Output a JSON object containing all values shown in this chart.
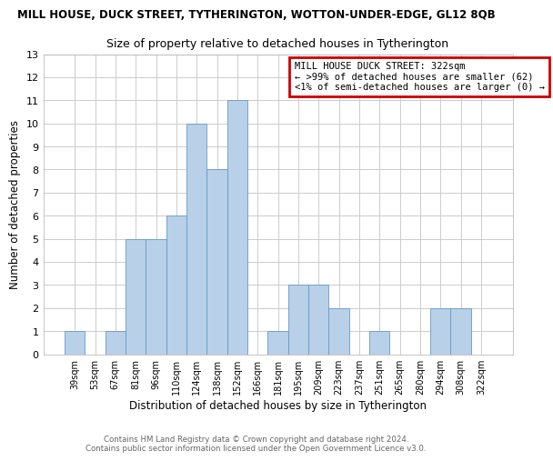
{
  "title": "MILL HOUSE, DUCK STREET, TYTHERINGTON, WOTTON-UNDER-EDGE, GL12 8QB",
  "subtitle": "Size of property relative to detached houses in Tytherington",
  "xlabel": "Distribution of detached houses by size in Tytherington",
  "ylabel": "Number of detached properties",
  "bar_color": "#b8d0e8",
  "bar_edge_color": "#6699cc",
  "categories": [
    "39sqm",
    "53sqm",
    "67sqm",
    "81sqm",
    "96sqm",
    "110sqm",
    "124sqm",
    "138sqm",
    "152sqm",
    "166sqm",
    "181sqm",
    "195sqm",
    "209sqm",
    "223sqm",
    "237sqm",
    "251sqm",
    "265sqm",
    "280sqm",
    "294sqm",
    "308sqm",
    "322sqm"
  ],
  "values": [
    1,
    0,
    1,
    5,
    5,
    6,
    10,
    8,
    11,
    0,
    1,
    3,
    3,
    2,
    0,
    1,
    0,
    0,
    2,
    2,
    0
  ],
  "ylim": [
    0,
    13
  ],
  "yticks": [
    0,
    1,
    2,
    3,
    4,
    5,
    6,
    7,
    8,
    9,
    10,
    11,
    12,
    13
  ],
  "legend_title": "MILL HOUSE DUCK STREET: 322sqm",
  "legend_line1": "← >99% of detached houses are smaller (62)",
  "legend_line2": "<1% of semi-detached houses are larger (0) →",
  "legend_box_color": "#cc0000",
  "footer1": "Contains HM Land Registry data © Crown copyright and database right 2024.",
  "footer2": "Contains public sector information licensed under the Open Government Licence v3.0.",
  "grid_color": "#cccccc",
  "background_color": "#ffffff",
  "title_fontsize": 8.5,
  "subtitle_fontsize": 9.0,
  "xlabel_fontsize": 8.5,
  "ylabel_fontsize": 8.5,
  "xtick_fontsize": 7.0,
  "ytick_fontsize": 8.0,
  "legend_fontsize": 7.5,
  "footer_fontsize": 6.2
}
